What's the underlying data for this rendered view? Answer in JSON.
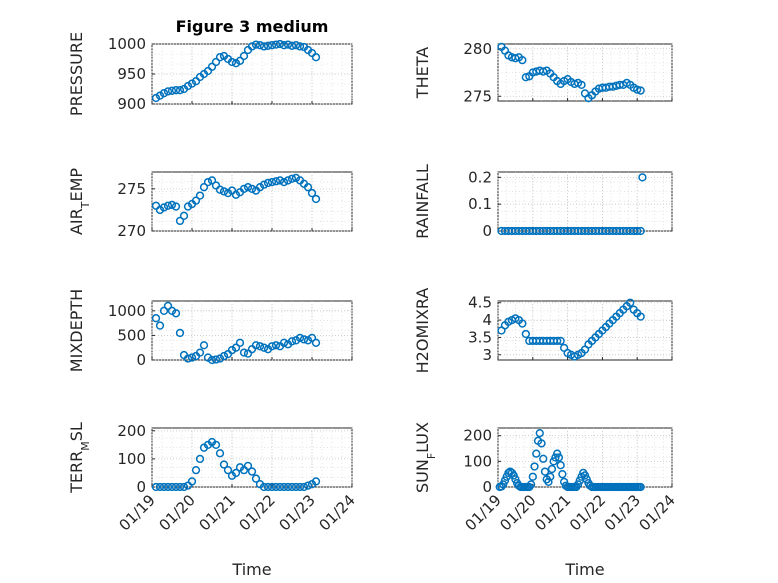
{
  "chart_data": [
    {
      "id": "pressure",
      "type": "scatter",
      "title": "Figure 3 medium",
      "ylabel": "PRESSURE",
      "ylim": [
        900,
        1000
      ],
      "yticks": [
        900,
        950,
        1000
      ],
      "xlim": [
        "01/19",
        "01/24"
      ],
      "xticks": [
        "01/19",
        "01/20",
        "01/21",
        "01/22",
        "01/23",
        "01/24"
      ],
      "xticks_labeled": false,
      "marker": "o",
      "color": "#0072BD",
      "x_days": [
        0.1,
        0.2,
        0.3,
        0.4,
        0.5,
        0.6,
        0.7,
        0.8,
        0.9,
        1.0,
        1.1,
        1.2,
        1.3,
        1.4,
        1.5,
        1.6,
        1.7,
        1.8,
        1.9,
        2.0,
        2.1,
        2.2,
        2.3,
        2.4,
        2.5,
        2.6,
        2.7,
        2.8,
        2.9,
        3.0,
        3.1,
        3.2,
        3.3,
        3.4,
        3.5,
        3.6,
        3.7,
        3.8,
        3.9,
        4.0,
        4.1
      ],
      "y": [
        910,
        914,
        918,
        921,
        922,
        923,
        923,
        925,
        930,
        934,
        938,
        945,
        950,
        955,
        962,
        970,
        978,
        980,
        975,
        970,
        968,
        972,
        980,
        990,
        996,
        999,
        998,
        996,
        997,
        998,
        999,
        1000,
        998,
        999,
        997,
        998,
        996,
        995,
        990,
        985,
        978
      ]
    },
    {
      "id": "theta",
      "type": "scatter",
      "title": "",
      "ylabel": "THETA",
      "ylim": [
        274.5,
        280.5
      ],
      "yticks": [
        275,
        280
      ],
      "xlim": [
        "01/19",
        "01/24"
      ],
      "xticks": [
        "01/19",
        "01/20",
        "01/21",
        "01/22",
        "01/23",
        "01/24"
      ],
      "xticks_labeled": false,
      "marker": "o",
      "color": "#0072BD",
      "x_days": [
        0.1,
        0.2,
        0.3,
        0.4,
        0.5,
        0.6,
        0.7,
        0.8,
        0.9,
        1.0,
        1.1,
        1.2,
        1.3,
        1.4,
        1.5,
        1.6,
        1.7,
        1.8,
        1.9,
        2.0,
        2.1,
        2.2,
        2.3,
        2.4,
        2.5,
        2.6,
        2.7,
        2.8,
        2.9,
        3.0,
        3.1,
        3.2,
        3.3,
        3.4,
        3.5,
        3.6,
        3.7,
        3.8,
        3.9,
        4.0,
        4.1
      ],
      "y": [
        280.2,
        279.8,
        279.3,
        279.1,
        279.0,
        279.1,
        278.8,
        277.0,
        277.1,
        277.5,
        277.6,
        277.7,
        277.6,
        277.7,
        277.4,
        277.0,
        276.6,
        276.3,
        276.6,
        276.8,
        276.5,
        276.3,
        276.4,
        276.2,
        275.3,
        274.8,
        275.1,
        275.5,
        275.8,
        275.9,
        275.9,
        276.0,
        276.0,
        276.1,
        276.2,
        276.2,
        276.4,
        276.2,
        275.9,
        275.7,
        275.6
      ]
    },
    {
      "id": "air_temp",
      "type": "scatter",
      "title": "",
      "ylabel": "AIR_TEMP",
      "ylim": [
        270,
        277
      ],
      "yticks": [
        270,
        275
      ],
      "xlim": [
        "01/19",
        "01/24"
      ],
      "xticks": [
        "01/19",
        "01/20",
        "01/21",
        "01/22",
        "01/23",
        "01/24"
      ],
      "xticks_labeled": false,
      "marker": "o",
      "color": "#0072BD",
      "x_days": [
        0.1,
        0.2,
        0.3,
        0.4,
        0.5,
        0.6,
        0.7,
        0.8,
        0.9,
        1.0,
        1.1,
        1.2,
        1.3,
        1.4,
        1.5,
        1.6,
        1.7,
        1.8,
        1.9,
        2.0,
        2.1,
        2.2,
        2.3,
        2.4,
        2.5,
        2.6,
        2.7,
        2.8,
        2.9,
        3.0,
        3.1,
        3.2,
        3.3,
        3.4,
        3.5,
        3.6,
        3.7,
        3.8,
        3.9,
        4.0,
        4.1
      ],
      "y": [
        273.0,
        272.5,
        272.8,
        273.0,
        273.1,
        272.9,
        271.2,
        271.8,
        272.9,
        273.2,
        273.6,
        274.2,
        275.2,
        275.8,
        276.0,
        275.4,
        274.9,
        274.7,
        274.5,
        274.8,
        274.3,
        274.6,
        275.0,
        275.2,
        275.0,
        274.8,
        275.2,
        275.5,
        275.7,
        275.8,
        275.9,
        276.0,
        275.8,
        276.0,
        276.2,
        276.3,
        276.0,
        275.6,
        275.2,
        274.5,
        273.8
      ]
    },
    {
      "id": "rainfall",
      "type": "scatter",
      "title": "",
      "ylabel": "RAINFALL",
      "ylim": [
        0,
        0.22
      ],
      "yticks": [
        0,
        0.1,
        0.2
      ],
      "xlim": [
        "01/19",
        "01/24"
      ],
      "xticks": [
        "01/19",
        "01/20",
        "01/21",
        "01/22",
        "01/23",
        "01/24"
      ],
      "xticks_labeled": false,
      "marker": "o",
      "color": "#0072BD",
      "x_days": [
        0.1,
        0.2,
        0.3,
        0.4,
        0.5,
        0.6,
        0.7,
        0.8,
        0.9,
        1.0,
        1.1,
        1.2,
        1.3,
        1.4,
        1.5,
        1.6,
        1.7,
        1.8,
        1.9,
        2.0,
        2.1,
        2.2,
        2.3,
        2.4,
        2.5,
        2.6,
        2.7,
        2.8,
        2.9,
        3.0,
        3.1,
        3.2,
        3.3,
        3.4,
        3.5,
        3.6,
        3.7,
        3.8,
        3.9,
        4.0,
        4.1,
        4.15
      ],
      "y": [
        0,
        0,
        0,
        0,
        0,
        0,
        0,
        0,
        0,
        0,
        0,
        0,
        0,
        0,
        0,
        0,
        0,
        0,
        0,
        0,
        0,
        0,
        0,
        0,
        0,
        0,
        0,
        0,
        0,
        0,
        0,
        0,
        0,
        0,
        0,
        0,
        0,
        0,
        0,
        0,
        0,
        0.2
      ]
    },
    {
      "id": "mixdepth",
      "type": "scatter",
      "title": "",
      "ylabel": "MIXDEPTH",
      "ylim": [
        0,
        1200
      ],
      "yticks": [
        0,
        500,
        1000
      ],
      "xlim": [
        "01/19",
        "01/24"
      ],
      "xticks": [
        "01/19",
        "01/20",
        "01/21",
        "01/22",
        "01/23",
        "01/24"
      ],
      "xticks_labeled": false,
      "marker": "o",
      "color": "#0072BD",
      "x_days": [
        0.1,
        0.2,
        0.3,
        0.4,
        0.5,
        0.6,
        0.7,
        0.8,
        0.9,
        1.0,
        1.1,
        1.2,
        1.3,
        1.4,
        1.5,
        1.6,
        1.7,
        1.8,
        1.9,
        2.0,
        2.1,
        2.2,
        2.3,
        2.4,
        2.5,
        2.6,
        2.7,
        2.8,
        2.9,
        3.0,
        3.1,
        3.2,
        3.3,
        3.4,
        3.5,
        3.6,
        3.7,
        3.8,
        3.9,
        4.0,
        4.1
      ],
      "y": [
        850,
        700,
        1000,
        1100,
        1000,
        950,
        550,
        100,
        30,
        50,
        80,
        150,
        300,
        50,
        0,
        10,
        30,
        80,
        120,
        200,
        250,
        350,
        150,
        130,
        220,
        300,
        280,
        250,
        220,
        280,
        300,
        280,
        350,
        320,
        380,
        400,
        450,
        420,
        400,
        450,
        350
      ]
    },
    {
      "id": "h2omixra",
      "type": "scatter",
      "title": "",
      "ylabel": "H2OMIXRA",
      "ylim": [
        2.85,
        4.55
      ],
      "yticks": [
        3,
        3.5,
        4,
        4.5
      ],
      "xlim": [
        "01/19",
        "01/24"
      ],
      "xticks": [
        "01/19",
        "01/20",
        "01/21",
        "01/22",
        "01/23",
        "01/24"
      ],
      "xticks_labeled": false,
      "marker": "o",
      "color": "#0072BD",
      "x_days": [
        0.1,
        0.2,
        0.3,
        0.4,
        0.5,
        0.6,
        0.7,
        0.8,
        0.9,
        1.0,
        1.1,
        1.2,
        1.3,
        1.4,
        1.5,
        1.6,
        1.7,
        1.8,
        1.9,
        2.0,
        2.1,
        2.2,
        2.3,
        2.4,
        2.5,
        2.6,
        2.7,
        2.8,
        2.9,
        3.0,
        3.1,
        3.2,
        3.3,
        3.4,
        3.5,
        3.6,
        3.7,
        3.8,
        3.9,
        4.0,
        4.1
      ],
      "y": [
        3.7,
        3.85,
        3.95,
        4.0,
        4.05,
        4.0,
        3.9,
        3.6,
        3.4,
        3.4,
        3.4,
        3.4,
        3.4,
        3.4,
        3.4,
        3.4,
        3.4,
        3.4,
        3.2,
        3.05,
        3.0,
        2.95,
        3.0,
        3.05,
        3.15,
        3.3,
        3.4,
        3.5,
        3.6,
        3.7,
        3.8,
        3.9,
        4.0,
        4.1,
        4.2,
        4.3,
        4.4,
        4.5,
        4.3,
        4.2,
        4.1
      ]
    },
    {
      "id": "terr_msl",
      "type": "scatter",
      "title": "",
      "ylabel": "TERR_MSL",
      "ylim": [
        0,
        210
      ],
      "yticks": [
        0,
        100,
        200
      ],
      "xlim": [
        "01/19",
        "01/24"
      ],
      "xticks": [
        "01/19",
        "01/20",
        "01/21",
        "01/22",
        "01/23",
        "01/24"
      ],
      "xticks_labeled": true,
      "xlabel": "Time",
      "marker": "o",
      "color": "#0072BD",
      "x_days": [
        0.1,
        0.2,
        0.3,
        0.4,
        0.5,
        0.6,
        0.7,
        0.8,
        0.9,
        1.0,
        1.1,
        1.2,
        1.3,
        1.4,
        1.5,
        1.6,
        1.7,
        1.8,
        1.9,
        2.0,
        2.1,
        2.2,
        2.3,
        2.4,
        2.5,
        2.6,
        2.7,
        2.8,
        2.9,
        3.0,
        3.1,
        3.2,
        3.3,
        3.4,
        3.5,
        3.6,
        3.7,
        3.8,
        3.9,
        4.0,
        4.1
      ],
      "y": [
        0,
        0,
        0,
        0,
        0,
        0,
        0,
        0,
        5,
        20,
        60,
        100,
        140,
        150,
        160,
        150,
        120,
        80,
        60,
        40,
        50,
        70,
        60,
        75,
        55,
        30,
        10,
        0,
        0,
        0,
        0,
        0,
        0,
        0,
        0,
        0,
        0,
        0,
        5,
        10,
        20
      ]
    },
    {
      "id": "sun_flux",
      "type": "scatter",
      "title": "",
      "ylabel": "SUN_FLUX",
      "ylim": [
        0,
        230
      ],
      "yticks": [
        0,
        100,
        200
      ],
      "xlim": [
        "01/19",
        "01/24"
      ],
      "xticks": [
        "01/19",
        "01/20",
        "01/21",
        "01/22",
        "01/23",
        "01/24"
      ],
      "xticks_labeled": true,
      "xlabel": "Time",
      "marker": "o",
      "color": "#0072BD",
      "x_days": [
        0.05,
        0.1,
        0.15,
        0.2,
        0.25,
        0.3,
        0.35,
        0.4,
        0.45,
        0.5,
        0.55,
        0.6,
        0.65,
        0.7,
        0.75,
        0.8,
        0.85,
        0.9,
        0.95,
        1.0,
        1.05,
        1.1,
        1.15,
        1.2,
        1.25,
        1.3,
        1.35,
        1.4,
        1.45,
        1.5,
        1.55,
        1.6,
        1.65,
        1.7,
        1.75,
        1.8,
        1.85,
        1.9,
        1.95,
        2.0,
        2.05,
        2.1,
        2.15,
        2.2,
        2.25,
        2.3,
        2.35,
        2.4,
        2.45,
        2.5,
        2.55,
        2.6,
        2.65,
        2.7,
        2.75,
        2.8,
        2.85,
        2.9,
        2.95,
        3.0,
        3.05,
        3.1,
        3.15,
        3.2,
        3.25,
        3.3,
        3.35,
        3.4,
        3.45,
        3.5,
        3.55,
        3.6,
        3.65,
        3.7,
        3.75,
        3.8,
        3.85,
        3.9,
        3.95,
        4.0,
        4.05,
        4.1
      ],
      "y": [
        0,
        2,
        10,
        25,
        40,
        55,
        60,
        55,
        45,
        30,
        15,
        5,
        0,
        0,
        0,
        0,
        0,
        0,
        10,
        40,
        80,
        130,
        180,
        210,
        170,
        110,
        60,
        30,
        20,
        40,
        70,
        100,
        115,
        130,
        115,
        85,
        50,
        20,
        5,
        0,
        0,
        0,
        0,
        0,
        0,
        10,
        25,
        40,
        55,
        45,
        30,
        15,
        5,
        0,
        0,
        0,
        0,
        0,
        0,
        0,
        0,
        0,
        0,
        0,
        0,
        0,
        0,
        0,
        0,
        0,
        0,
        0,
        0,
        0,
        0,
        0,
        0,
        0,
        0,
        0,
        0,
        0
      ]
    }
  ]
}
